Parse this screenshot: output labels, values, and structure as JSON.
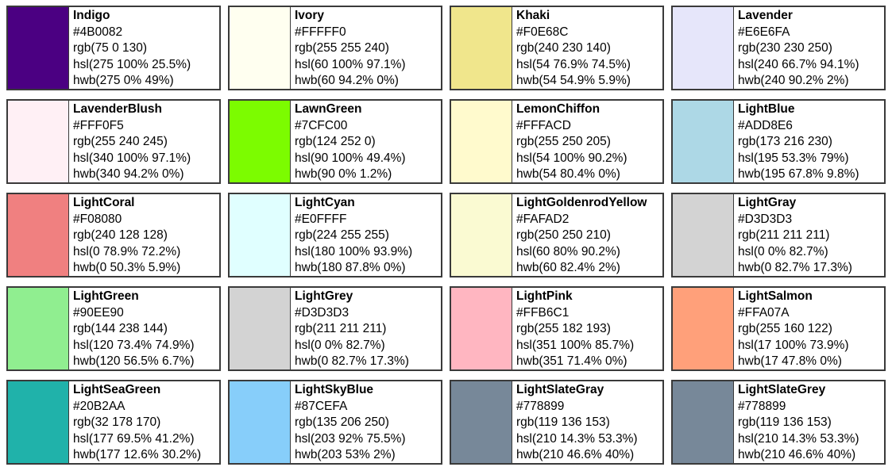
{
  "colors": [
    {
      "name": "Indigo",
      "hex": "#4B0082",
      "rgb": "rgb(75 0 130)",
      "hsl": "hsl(275 100% 25.5%)",
      "hwb": "hwb(275 0% 49%)"
    },
    {
      "name": "Ivory",
      "hex": "#FFFFF0",
      "rgb": "rgb(255 255 240)",
      "hsl": "hsl(60 100% 97.1%)",
      "hwb": "hwb(60 94.2% 0%)"
    },
    {
      "name": "Khaki",
      "hex": "#F0E68C",
      "rgb": "rgb(240 230 140)",
      "hsl": "hsl(54 76.9% 74.5%)",
      "hwb": "hwb(54 54.9% 5.9%)"
    },
    {
      "name": "Lavender",
      "hex": "#E6E6FA",
      "rgb": "rgb(230 230 250)",
      "hsl": "hsl(240 66.7% 94.1%)",
      "hwb": "hwb(240 90.2% 2%)"
    },
    {
      "name": "LavenderBlush",
      "hex": "#FFF0F5",
      "rgb": "rgb(255 240 245)",
      "hsl": "hsl(340 100% 97.1%)",
      "hwb": "hwb(340 94.2% 0%)"
    },
    {
      "name": "LawnGreen",
      "hex": "#7CFC00",
      "rgb": "rgb(124 252 0)",
      "hsl": "hsl(90 100% 49.4%)",
      "hwb": "hwb(90 0% 1.2%)"
    },
    {
      "name": "LemonChiffon",
      "hex": "#FFFACD",
      "rgb": "rgb(255 250 205)",
      "hsl": "hsl(54 100% 90.2%)",
      "hwb": "hwb(54 80.4% 0%)"
    },
    {
      "name": "LightBlue",
      "hex": "#ADD8E6",
      "rgb": "rgb(173 216 230)",
      "hsl": "hsl(195 53.3% 79%)",
      "hwb": "hwb(195 67.8% 9.8%)"
    },
    {
      "name": "LightCoral",
      "hex": "#F08080",
      "rgb": "rgb(240 128 128)",
      "hsl": "hsl(0 78.9% 72.2%)",
      "hwb": "hwb(0 50.3% 5.9%)"
    },
    {
      "name": "LightCyan",
      "hex": "#E0FFFF",
      "rgb": "rgb(224 255 255)",
      "hsl": "hsl(180 100% 93.9%)",
      "hwb": "hwb(180 87.8% 0%)"
    },
    {
      "name": "LightGoldenrodYellow",
      "hex": "#FAFAD2",
      "rgb": "rgb(250 250 210)",
      "hsl": "hsl(60 80% 90.2%)",
      "hwb": "hwb(60 82.4% 2%)"
    },
    {
      "name": "LightGray",
      "hex": "#D3D3D3",
      "rgb": "rgb(211 211 211)",
      "hsl": "hsl(0 0% 82.7%)",
      "hwb": "hwb(0 82.7% 17.3%)"
    },
    {
      "name": "LightGreen",
      "hex": "#90EE90",
      "rgb": "rgb(144 238 144)",
      "hsl": "hsl(120 73.4% 74.9%)",
      "hwb": "hwb(120 56.5% 6.7%)"
    },
    {
      "name": "LightGrey",
      "hex": "#D3D3D3",
      "rgb": "rgb(211 211 211)",
      "hsl": "hsl(0 0% 82.7%)",
      "hwb": "hwb(0 82.7% 17.3%)"
    },
    {
      "name": "LightPink",
      "hex": "#FFB6C1",
      "rgb": "rgb(255 182 193)",
      "hsl": "hsl(351 100% 85.7%)",
      "hwb": "hwb(351 71.4% 0%)"
    },
    {
      "name": "LightSalmon",
      "hex": "#FFA07A",
      "rgb": "rgb(255 160 122)",
      "hsl": "hsl(17 100% 73.9%)",
      "hwb": "hwb(17 47.8% 0%)"
    },
    {
      "name": "LightSeaGreen",
      "hex": "#20B2AA",
      "rgb": "rgb(32 178 170)",
      "hsl": "hsl(177 69.5% 41.2%)",
      "hwb": "hwb(177 12.6% 30.2%)"
    },
    {
      "name": "LightSkyBlue",
      "hex": "#87CEFA",
      "rgb": "rgb(135 206 250)",
      "hsl": "hsl(203 92% 75.5%)",
      "hwb": "hwb(203 53% 2%)"
    },
    {
      "name": "LightSlateGray",
      "hex": "#778899",
      "rgb": "rgb(119 136 153)",
      "hsl": "hsl(210 14.3% 53.3%)",
      "hwb": "hwb(210 46.6% 40%)"
    },
    {
      "name": "LightSlateGrey",
      "hex": "#778899",
      "rgb": "rgb(119 136 153)",
      "hsl": "hsl(210 14.3% 53.3%)",
      "hwb": "hwb(210 46.6% 40%)"
    }
  ]
}
